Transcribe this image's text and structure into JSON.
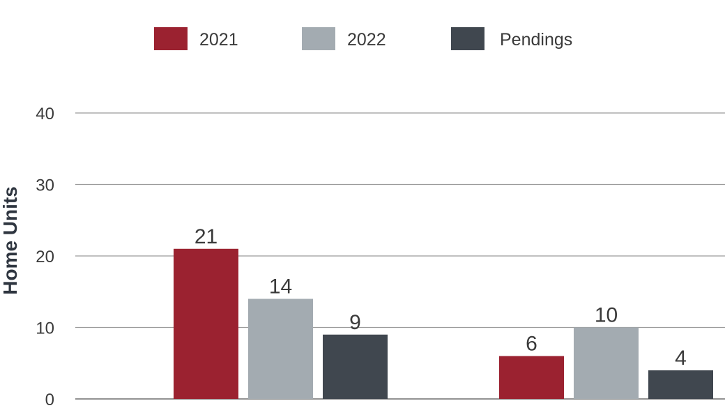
{
  "chart_data": {
    "type": "bar",
    "title": "",
    "xlabel": "",
    "ylabel": "Home Units",
    "ylim": [
      0,
      40
    ],
    "yticks": [
      0,
      10,
      20,
      30,
      40
    ],
    "categories": [
      "",
      ""
    ],
    "series": [
      {
        "name": "2021",
        "color": "#9b2230",
        "values": [
          21,
          6
        ]
      },
      {
        "name": "2022",
        "color": "#a3abb1",
        "values": [
          14,
          10
        ]
      },
      {
        "name": "Pendings",
        "color": "#40474f",
        "values": [
          9,
          4
        ]
      }
    ],
    "data_labels": [
      [
        "21",
        "6"
      ],
      [
        "14",
        "10"
      ],
      [
        "9",
        "4"
      ]
    ],
    "grid": true,
    "legend_position": "top-center"
  }
}
